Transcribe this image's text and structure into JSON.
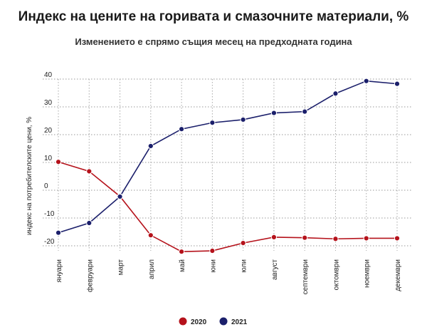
{
  "chart_data": {
    "type": "line",
    "title": "Индекс на цените на горивата и смазочните материали, %",
    "subtitle": "Изменението е спрямо същия месец на предходната година",
    "xlabel": "",
    "ylabel": "индекс на потребителските цени, %",
    "categories": [
      "януари",
      "февруари",
      "март",
      "април",
      "май",
      "юни",
      "юли",
      "август",
      "септември",
      "октомври",
      "ноември",
      "декември"
    ],
    "ylim": [
      -20,
      40
    ],
    "yticks": [
      -20,
      -10,
      0,
      10,
      20,
      30,
      40
    ],
    "ytick_labels": [
      "-20",
      "-10",
      "0",
      "10",
      "20",
      "30",
      "40"
    ],
    "grid": "horizontal-dotted",
    "legend": "bottom-center",
    "series": [
      {
        "name": "2020",
        "color": "#b5121b",
        "values": [
          10.2,
          6.8,
          -2.2,
          -16.2,
          -22.1,
          -21.8,
          -19.0,
          -16.9,
          -17.1,
          -17.5,
          -17.3,
          -17.3
        ]
      },
      {
        "name": "2021",
        "color": "#1b1f6b",
        "values": [
          -15.3,
          -11.8,
          -2.3,
          15.9,
          22.0,
          24.3,
          25.4,
          27.8,
          28.3,
          34.8,
          39.3,
          38.3
        ]
      }
    ]
  }
}
